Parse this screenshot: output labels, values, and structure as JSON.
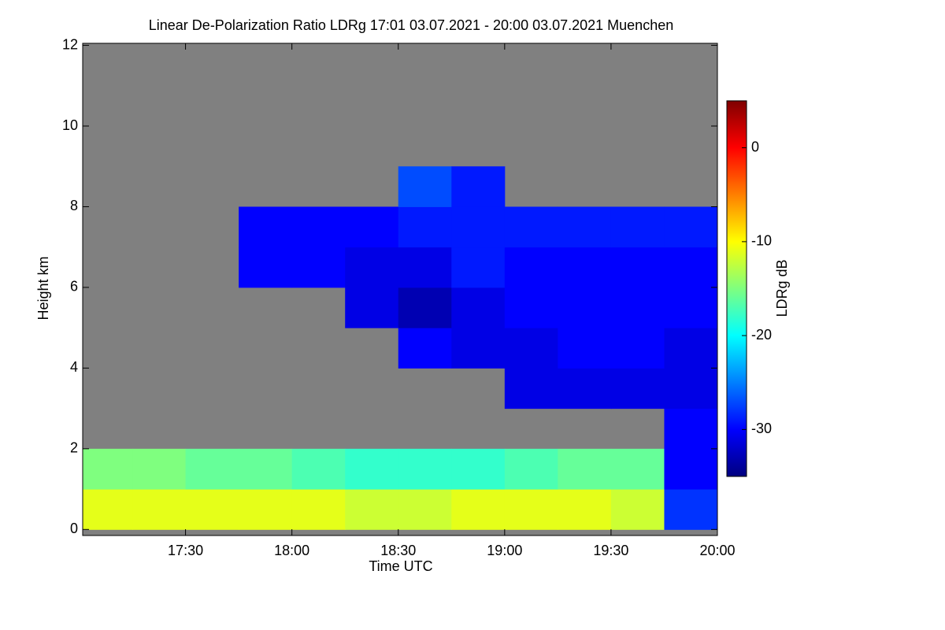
{
  "chart_data": {
    "type": "heatmap",
    "title": "Linear De-Polarization Ratio LDRg   17:01 03.07.2021 - 20:00 03.07.2021 Muenchen",
    "x_label": "Time UTC",
    "y_label": "Height km",
    "colorbar_label": "LDRg dB",
    "xlim": [
      "17:01",
      "20:00"
    ],
    "xticks": [
      "17:30",
      "18:00",
      "18:30",
      "19:00",
      "19:30",
      "20:00"
    ],
    "ylim": [
      -0.15,
      12.05
    ],
    "yticks": [
      0,
      2,
      4,
      6,
      8,
      10,
      12
    ],
    "zlim": [
      -35,
      5
    ],
    "zticks": [
      0,
      -10,
      -20,
      -30
    ],
    "colormap": [
      "#00007f",
      "#0000ff",
      "#007fff",
      "#00ffff",
      "#7fff7f",
      "#ffff00",
      "#ff7f00",
      "#ff0000",
      "#7f0000"
    ],
    "missing_color": "#808080",
    "x_bins": [
      "17:01",
      "17:15",
      "17:30",
      "17:45",
      "18:00",
      "18:15",
      "18:30",
      "18:45",
      "19:00",
      "19:15",
      "19:30",
      "19:45",
      "20:00"
    ],
    "y_bins": [
      0,
      1,
      2,
      3,
      4,
      5,
      6,
      7,
      8,
      9,
      10,
      11,
      12
    ],
    "values": [
      [
        -11,
        -11,
        -11,
        -11,
        -11,
        -12,
        -12,
        -11,
        -11,
        -11,
        -12,
        -28
      ],
      [
        -15,
        -15,
        -16,
        -16,
        -17,
        -18,
        -18,
        -18,
        -17,
        -16,
        -16,
        -30
      ],
      [
        null,
        null,
        null,
        null,
        null,
        null,
        null,
        null,
        null,
        null,
        null,
        -30
      ],
      [
        null,
        null,
        null,
        null,
        null,
        null,
        null,
        null,
        -31,
        -31,
        -31,
        -31
      ],
      [
        null,
        null,
        null,
        null,
        null,
        null,
        -30,
        -31,
        -31,
        -30,
        -30,
        -31
      ],
      [
        null,
        null,
        null,
        null,
        null,
        -31,
        -33,
        -31,
        -30,
        -30,
        -30,
        -30
      ],
      [
        null,
        null,
        null,
        -30,
        -30,
        -31,
        -31,
        -29,
        -30,
        -30,
        -30,
        -30
      ],
      [
        null,
        null,
        null,
        -30,
        -30,
        -30,
        -29,
        -29,
        -29,
        -29,
        -29,
        -29
      ],
      [
        null,
        null,
        null,
        null,
        null,
        null,
        -27,
        -29,
        null,
        null,
        null,
        null
      ],
      [
        null,
        null,
        null,
        null,
        null,
        null,
        null,
        null,
        null,
        null,
        null,
        null
      ],
      [
        null,
        null,
        null,
        null,
        null,
        null,
        null,
        null,
        null,
        null,
        null,
        null
      ],
      [
        null,
        null,
        null,
        null,
        null,
        null,
        null,
        null,
        null,
        null,
        null,
        null
      ]
    ]
  }
}
